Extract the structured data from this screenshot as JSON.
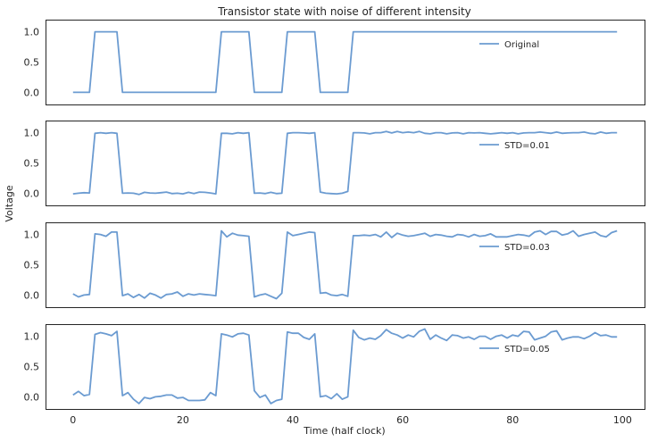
{
  "chart_data": [
    {
      "type": "line",
      "title": "Transistor state with noise of different intensity",
      "series": [
        {
          "name": "Original",
          "x": [
            0,
            1,
            2,
            3,
            4,
            5,
            6,
            7,
            8,
            9,
            10,
            11,
            12,
            13,
            14,
            15,
            16,
            17,
            18,
            19,
            20,
            21,
            22,
            23,
            24,
            25,
            26,
            27,
            28,
            29,
            30,
            31,
            32,
            33,
            34,
            35,
            36,
            37,
            38,
            39,
            40,
            41,
            42,
            43,
            44,
            45,
            46,
            47,
            48,
            49,
            50,
            51,
            52,
            53,
            54,
            55,
            56,
            57,
            58,
            59,
            60,
            61,
            62,
            63,
            64,
            65,
            66,
            67,
            68,
            69,
            70,
            71,
            72,
            73,
            74,
            75,
            76,
            77,
            78,
            79,
            80,
            81,
            82,
            83,
            84,
            85,
            86,
            87,
            88,
            89,
            90,
            91,
            92,
            93,
            94,
            95,
            96,
            97,
            98,
            99
          ],
          "values": [
            0,
            0,
            0,
            0,
            1,
            1,
            1,
            1,
            1,
            0,
            0,
            0,
            0,
            0,
            0,
            0,
            0,
            0,
            0,
            0,
            0,
            0,
            0,
            0,
            0,
            0,
            0,
            1,
            1,
            1,
            1,
            1,
            1,
            0,
            0,
            0,
            0,
            0,
            0,
            1,
            1,
            1,
            1,
            1,
            1,
            0,
            0,
            0,
            0,
            0,
            0,
            1,
            1,
            1,
            1,
            1,
            1,
            1,
            1,
            1,
            1,
            1,
            1,
            1,
            1,
            1,
            1,
            1,
            1,
            1,
            1,
            1,
            1,
            1,
            1,
            1,
            1,
            1,
            1,
            1,
            1,
            1,
            1,
            1,
            1,
            1,
            1,
            1,
            1,
            1,
            1,
            1,
            1,
            1,
            1,
            1,
            1,
            1,
            1,
            1
          ]
        }
      ],
      "xlim": [
        -5,
        104
      ],
      "ylim": [
        -0.2,
        1.2
      ],
      "yticks": [
        "0.0",
        "0.5",
        "1.0"
      ],
      "legend": "upper-right"
    },
    {
      "type": "line",
      "series": [
        {
          "name": "STD=0.01",
          "x": [
            0,
            1,
            2,
            3,
            4,
            5,
            6,
            7,
            8,
            9,
            10,
            11,
            12,
            13,
            14,
            15,
            16,
            17,
            18,
            19,
            20,
            21,
            22,
            23,
            24,
            25,
            26,
            27,
            28,
            29,
            30,
            31,
            32,
            33,
            34,
            35,
            36,
            37,
            38,
            39,
            40,
            41,
            42,
            43,
            44,
            45,
            46,
            47,
            48,
            49,
            50,
            51,
            52,
            53,
            54,
            55,
            56,
            57,
            58,
            59,
            60,
            61,
            62,
            63,
            64,
            65,
            66,
            67,
            68,
            69,
            70,
            71,
            72,
            73,
            74,
            75,
            76,
            77,
            78,
            79,
            80,
            81,
            82,
            83,
            84,
            85,
            86,
            87,
            88,
            89,
            90,
            91,
            92,
            93,
            94,
            95,
            96,
            97,
            98,
            99
          ],
          "values": [
            -0.01,
            0,
            0.01,
            0.005,
            0.99,
            1.0,
            0.99,
            1.0,
            0.99,
            0.0,
            0.005,
            0.0,
            -0.02,
            0.015,
            0.005,
            0.0,
            0.01,
            0.02,
            -0.005,
            0.0,
            -0.01,
            0.015,
            -0.005,
            0.02,
            0.015,
            0.005,
            -0.01,
            0.99,
            0.99,
            0.98,
            1.0,
            0.99,
            1.0,
            0.0,
            0.005,
            -0.005,
            0.015,
            -0.005,
            0.0,
            0.99,
            1.0,
            1.0,
            0.995,
            0.99,
            1.0,
            0.02,
            0.0,
            -0.005,
            -0.01,
            0.0,
            0.03,
            1.0,
            1.0,
            0.995,
            0.98,
            1.0,
            1.0,
            1.02,
            0.995,
            1.02,
            1.0,
            1.01,
            1.0,
            1.02,
            0.99,
            0.98,
            1.0,
            1.0,
            0.98,
            0.995,
            1.0,
            0.98,
            1.0,
            0.995,
            1.0,
            0.99,
            0.98,
            0.99,
            1.0,
            0.99,
            1.0,
            0.98,
            0.995,
            1.0,
            1.0,
            1.01,
            1.0,
            0.99,
            1.01,
            0.99,
            0.995,
            1.0,
            1.0,
            1.01,
            0.99,
            0.98,
            1.01,
            0.99,
            1.0,
            1.0
          ]
        }
      ],
      "xlim": [
        -5,
        104
      ],
      "ylim": [
        -0.2,
        1.2
      ],
      "yticks": [
        "0.0",
        "0.5",
        "1.0"
      ],
      "legend": "upper-right"
    },
    {
      "type": "line",
      "series": [
        {
          "name": "STD=0.03",
          "x": [
            0,
            1,
            2,
            3,
            4,
            5,
            6,
            7,
            8,
            9,
            10,
            11,
            12,
            13,
            14,
            15,
            16,
            17,
            18,
            19,
            20,
            21,
            22,
            23,
            24,
            25,
            26,
            27,
            28,
            29,
            30,
            31,
            32,
            33,
            34,
            35,
            36,
            37,
            38,
            39,
            40,
            41,
            42,
            43,
            44,
            45,
            46,
            47,
            48,
            49,
            50,
            51,
            52,
            53,
            54,
            55,
            56,
            57,
            58,
            59,
            60,
            61,
            62,
            63,
            64,
            65,
            66,
            67,
            68,
            69,
            70,
            71,
            72,
            73,
            74,
            75,
            76,
            77,
            78,
            79,
            80,
            81,
            82,
            83,
            84,
            85,
            86,
            87,
            88,
            89,
            90,
            91,
            92,
            93,
            94,
            95,
            96,
            97,
            98,
            99
          ],
          "values": [
            0.02,
            -0.03,
            0.0,
            0.01,
            1.01,
            1.0,
            0.97,
            1.04,
            1.04,
            -0.01,
            0.02,
            -0.04,
            0.01,
            -0.05,
            0.03,
            0.0,
            -0.05,
            0.01,
            0.02,
            0.05,
            -0.02,
            0.02,
            0.0,
            0.02,
            0.01,
            0.0,
            -0.01,
            1.06,
            0.96,
            1.02,
            0.99,
            0.98,
            0.97,
            -0.03,
            0.0,
            0.02,
            -0.02,
            -0.06,
            0.03,
            1.04,
            0.98,
            1.0,
            1.02,
            1.04,
            1.03,
            0.03,
            0.04,
            0.0,
            -0.01,
            0.01,
            -0.02,
            0.98,
            0.98,
            0.99,
            0.98,
            1.0,
            0.96,
            1.04,
            0.95,
            1.02,
            0.99,
            0.97,
            0.98,
            1.0,
            1.02,
            0.97,
            1.0,
            0.99,
            0.97,
            0.96,
            1.0,
            0.99,
            0.96,
            1.0,
            0.97,
            0.98,
            1.01,
            0.96,
            0.96,
            0.96,
            0.98,
            1.0,
            0.99,
            0.97,
            1.04,
            1.06,
            1.0,
            1.05,
            1.05,
            0.99,
            1.01,
            1.06,
            0.97,
            1.0,
            1.02,
            1.04,
            0.98,
            0.96,
            1.03,
            1.06
          ]
        }
      ],
      "xlim": [
        -5,
        104
      ],
      "ylim": [
        -0.2,
        1.2
      ],
      "yticks": [
        "0.0",
        "0.5",
        "1.0"
      ],
      "legend": "upper-right"
    },
    {
      "type": "line",
      "xlabel": "Time (half clock)",
      "series": [
        {
          "name": "STD=0.05",
          "x": [
            0,
            1,
            2,
            3,
            4,
            5,
            6,
            7,
            8,
            9,
            10,
            11,
            12,
            13,
            14,
            15,
            16,
            17,
            18,
            19,
            20,
            21,
            22,
            23,
            24,
            25,
            26,
            27,
            28,
            29,
            30,
            31,
            32,
            33,
            34,
            35,
            36,
            37,
            38,
            39,
            40,
            41,
            42,
            43,
            44,
            45,
            46,
            47,
            48,
            49,
            50,
            51,
            52,
            53,
            54,
            55,
            56,
            57,
            58,
            59,
            60,
            61,
            62,
            63,
            64,
            65,
            66,
            67,
            68,
            69,
            70,
            71,
            72,
            73,
            74,
            75,
            76,
            77,
            78,
            79,
            80,
            81,
            82,
            83,
            84,
            85,
            86,
            87,
            88,
            89,
            90,
            91,
            92,
            93,
            94,
            95,
            96,
            97,
            98,
            99
          ],
          "values": [
            0.03,
            0.09,
            0.02,
            0.04,
            1.03,
            1.06,
            1.04,
            1.01,
            1.08,
            0.02,
            0.07,
            -0.04,
            -0.11,
            -0.01,
            -0.03,
            0.0,
            0.01,
            0.03,
            0.03,
            -0.02,
            -0.01,
            -0.06,
            -0.06,
            -0.06,
            -0.05,
            0.07,
            0.02,
            1.04,
            1.02,
            0.99,
            1.04,
            1.05,
            1.02,
            0.1,
            -0.01,
            0.03,
            -0.11,
            -0.06,
            -0.04,
            1.07,
            1.05,
            1.05,
            0.98,
            0.95,
            1.04,
            0.0,
            0.02,
            -0.03,
            0.05,
            -0.04,
            0.0,
            1.1,
            0.98,
            0.94,
            0.97,
            0.95,
            1.01,
            1.11,
            1.05,
            1.02,
            0.97,
            1.02,
            0.99,
            1.08,
            1.12,
            0.95,
            1.02,
            0.97,
            0.93,
            1.02,
            1.01,
            0.97,
            0.99,
            0.95,
            1.0,
            1.0,
            0.95,
            1.0,
            1.02,
            0.97,
            1.02,
            1.0,
            1.08,
            1.07,
            0.94,
            0.97,
            1.0,
            1.07,
            1.09,
            0.94,
            0.97,
            0.99,
            0.99,
            0.96,
            1.0,
            1.06,
            1.01,
            1.02,
            0.99,
            0.99
          ]
        }
      ],
      "xlim": [
        -5,
        104
      ],
      "ylim": [
        -0.2,
        1.2
      ],
      "xticks": [
        "0",
        "20",
        "40",
        "60",
        "80",
        "100"
      ],
      "yticks": [
        "0.0",
        "0.5",
        "1.0"
      ],
      "legend": "upper-right"
    }
  ],
  "figure": {
    "ylabel": "Voltage",
    "line_color": "#6b9bd1",
    "frame_color": "#262626",
    "text_color": "#262626"
  }
}
